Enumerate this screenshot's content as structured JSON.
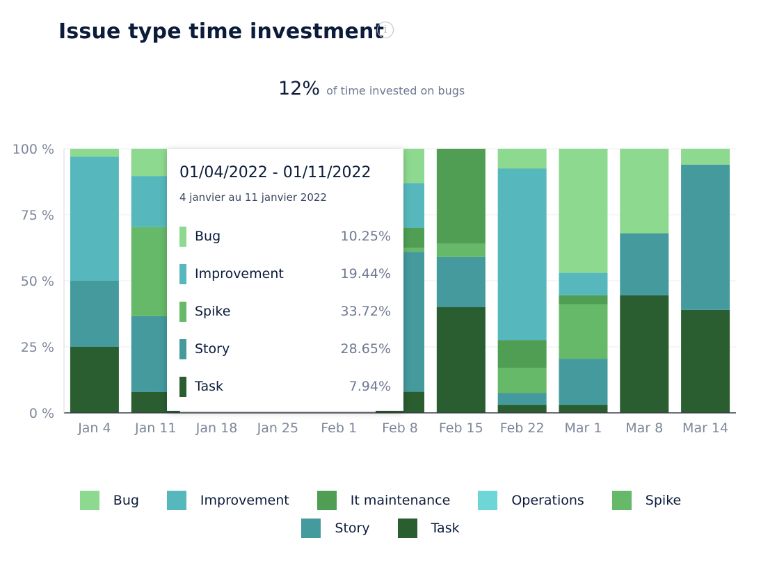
{
  "header": {
    "title": "Issue type time investment",
    "info_icon": "info-icon",
    "summary_value": "12%",
    "summary_text": "of time invested on bugs"
  },
  "colors": {
    "Bug": "#8dd98f",
    "Improvement": "#56b8bc",
    "It maintenance": "#509e53",
    "Operations": "#6fd6d8",
    "Spike": "#67b96a",
    "Story": "#449a9d",
    "Task": "#2a5e30"
  },
  "chart_data": {
    "type": "bar",
    "stacked": true,
    "y_tick_labels": [
      "0 %",
      "25 %",
      "50 %",
      "75 %",
      "100 %"
    ],
    "ylim": [
      0,
      100
    ],
    "grid": true,
    "categories": [
      "Jan 4",
      "Jan 11",
      "Jan 18",
      "Jan 25",
      "Feb 1",
      "Feb 8",
      "Feb 15",
      "Feb 22",
      "Mar 1",
      "Mar 8",
      "Mar 14"
    ],
    "series": [
      {
        "name": "Task",
        "values": [
          25,
          7.9,
          0,
          0,
          0,
          8,
          40,
          3,
          3,
          44.5,
          39
        ]
      },
      {
        "name": "Story",
        "values": [
          25,
          28.7,
          0,
          0,
          0,
          53,
          19,
          4.5,
          17.5,
          23.5,
          55
        ]
      },
      {
        "name": "Spike",
        "values": [
          0,
          33.7,
          0,
          0,
          0,
          1.5,
          5,
          9.5,
          20.5,
          0,
          0
        ]
      },
      {
        "name": "It maintenance",
        "values": [
          0,
          0,
          0,
          0,
          0,
          7.5,
          36,
          10.5,
          3.5,
          0,
          0
        ]
      },
      {
        "name": "Operations",
        "values": [
          0,
          0,
          0,
          0,
          0,
          0,
          0,
          0,
          0,
          0,
          0
        ]
      },
      {
        "name": "Improvement",
        "values": [
          47,
          19.4,
          0,
          0,
          0,
          17,
          0,
          65,
          8.5,
          0,
          0
        ]
      },
      {
        "name": "Bug",
        "values": [
          3,
          10.3,
          0,
          0,
          0,
          13,
          0,
          7.5,
          47,
          32,
          6
        ]
      }
    ],
    "legend_position": "bottom"
  },
  "tooltip": {
    "range": "01/04/2022 - 01/11/2022",
    "subtitle": "4 janvier au 11 janvier 2022",
    "rows": [
      {
        "label": "Bug",
        "value": "10.25%"
      },
      {
        "label": "Improvement",
        "value": "19.44%"
      },
      {
        "label": "Spike",
        "value": "33.72%"
      },
      {
        "label": "Story",
        "value": "28.65%"
      },
      {
        "label": "Task",
        "value": "7.94%"
      }
    ]
  },
  "legend": {
    "row1": [
      "Bug",
      "Improvement",
      "It maintenance",
      "Operations",
      "Spike"
    ],
    "row2": [
      "Story",
      "Task"
    ]
  }
}
